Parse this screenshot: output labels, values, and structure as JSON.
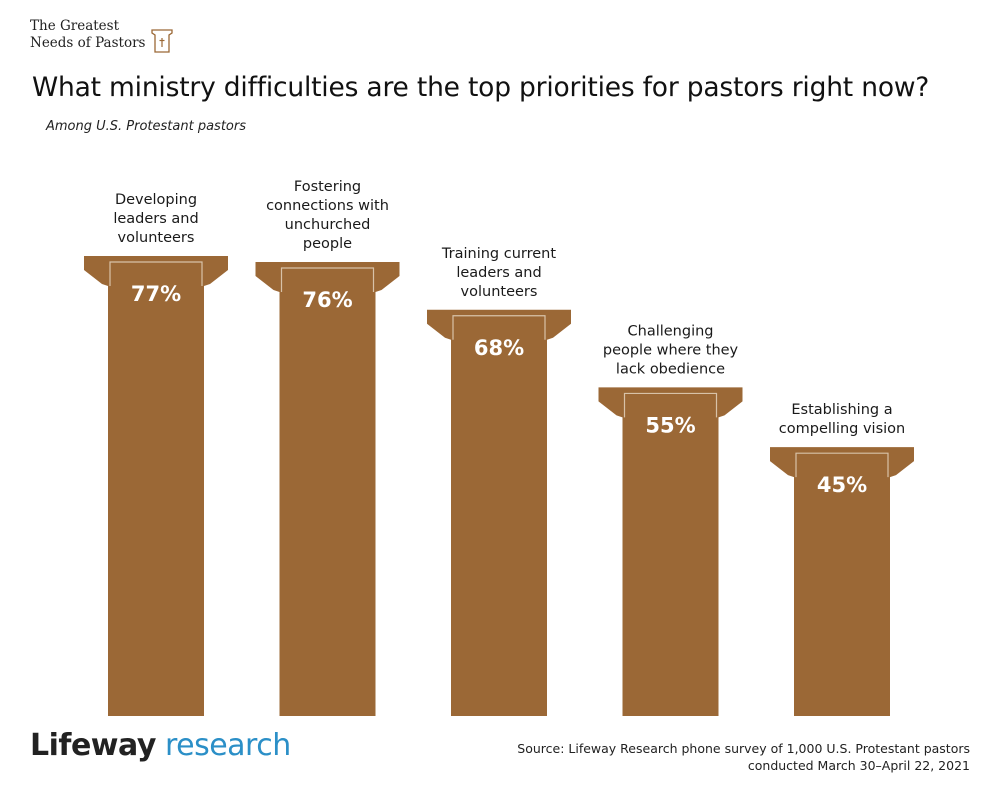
{
  "header": {
    "logo_line1": "The Greatest",
    "logo_line2": "Needs of Pastors",
    "logo_icon": "pulpit-cross-icon",
    "title": "What ministry difficulties are the top priorities for pastors right now?",
    "subtitle": "Among U.S. Protestant pastors"
  },
  "colors": {
    "pillar": "#9b6836",
    "pillar_outline": "#d8c2a8",
    "value_text": "#ffffff",
    "research_blue": "#2b8fc7"
  },
  "chart_data": {
    "type": "bar",
    "categories": [
      [
        "Developing",
        "leaders and",
        "volunteers"
      ],
      [
        "Fostering",
        "connections with",
        "unchurched",
        "people"
      ],
      [
        "Training current",
        "leaders and",
        "volunteers"
      ],
      [
        "Challenging",
        "people where they",
        "lack obedience"
      ],
      [
        "Establishing a",
        "compelling vision"
      ]
    ],
    "values": [
      77,
      76,
      68,
      55,
      45
    ],
    "value_labels": [
      "77%",
      "76%",
      "68%",
      "55%",
      "45%"
    ],
    "title": "What ministry difficulties are the top priorities for pastors right now?",
    "subtitle": "Among U.S. Protestant pastors",
    "xlabel": "",
    "ylabel": "",
    "ylim": [
      0,
      100
    ],
    "grid": false,
    "legend": "none"
  },
  "footer": {
    "brand": "Lifeway",
    "research": "research",
    "source_line1": "Source: Lifeway Research phone survey of 1,000 U.S. Protestant pastors",
    "source_line2": "conducted March 30–April 22, 2021"
  }
}
